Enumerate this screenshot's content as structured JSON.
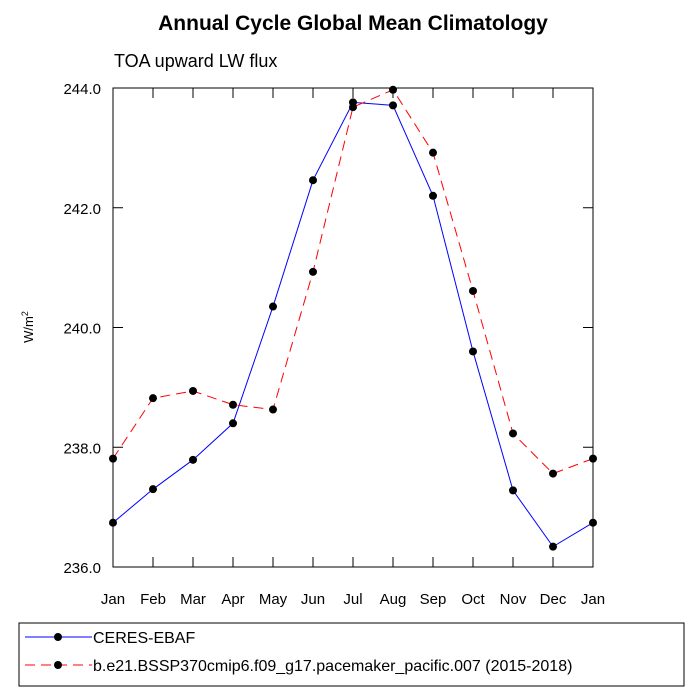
{
  "chart_data": {
    "type": "line",
    "title": "Annual Cycle Global Mean Climatology",
    "subtitle": "TOA upward LW flux",
    "ylabel_base": "W/m",
    "ylabel_exp": "2",
    "xlabel": "",
    "categories": [
      "Jan",
      "Feb",
      "Mar",
      "Apr",
      "May",
      "Jun",
      "Jul",
      "Aug",
      "Sep",
      "Oct",
      "Nov",
      "Dec",
      "Jan"
    ],
    "ylim": [
      236.0,
      244.0
    ],
    "yticks": [
      236.0,
      238.0,
      240.0,
      242.0,
      244.0
    ],
    "ytick_labels": [
      "236.0",
      "238.0",
      "240.0",
      "242.0",
      "244.0"
    ],
    "series": [
      {
        "name": "CERES-EBAF",
        "color": "#0000ff",
        "dash": "solid",
        "values": [
          236.74,
          237.3,
          237.79,
          238.4,
          240.35,
          242.46,
          243.76,
          243.71,
          242.2,
          239.6,
          237.28,
          236.34,
          236.74
        ]
      },
      {
        "name": "b.e21.BSSP370cmip6.f09_g17.pacemaker_pacific.007 (2015-2018)",
        "color": "#ff0000",
        "dash": "dashed",
        "values": [
          237.81,
          238.82,
          238.94,
          238.71,
          238.63,
          240.93,
          243.68,
          243.97,
          242.92,
          240.61,
          238.23,
          237.56,
          237.81
        ]
      }
    ],
    "marker_color": "#000000",
    "legend_position": "bottom"
  }
}
